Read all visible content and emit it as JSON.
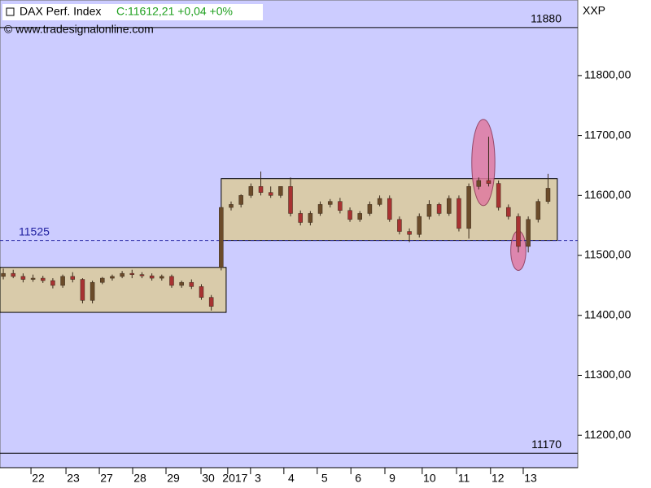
{
  "chart_data": {
    "type": "candlestick",
    "title": "DAX Perf. Index",
    "quote": "C:11612,21 +0,04 +0%",
    "copyright": "© www.tradesignalonline.com",
    "symbol_label": "XXP",
    "up_color": "#6b4b2a",
    "down_color": "#a83232",
    "background": "#ccccff",
    "xlim": [
      0,
      175
    ],
    "ylim": [
      11146,
      11926
    ],
    "yticks": [
      {
        "value": 11200,
        "label": "11200,00"
      },
      {
        "value": 11300,
        "label": "11300,00"
      },
      {
        "value": 11400,
        "label": "11400,00"
      },
      {
        "value": 11500,
        "label": "11500,00"
      },
      {
        "value": 11600,
        "label": "11600,00"
      },
      {
        "value": 11700,
        "label": "11700,00"
      },
      {
        "value": 11800,
        "label": "11800,00"
      }
    ],
    "xticks": [
      {
        "value": 11.6,
        "label": "22"
      },
      {
        "value": 22.2,
        "label": "23"
      },
      {
        "value": 32.3,
        "label": "27"
      },
      {
        "value": 42.4,
        "label": "28"
      },
      {
        "value": 52.5,
        "label": "29"
      },
      {
        "value": 63.1,
        "label": "30"
      },
      {
        "value": 71.2,
        "label": "2017"
      },
      {
        "value": 78.1,
        "label": "3"
      },
      {
        "value": 88.2,
        "label": "4"
      },
      {
        "value": 98.3,
        "label": "5"
      },
      {
        "value": 108.5,
        "label": "6"
      },
      {
        "value": 118.8,
        "label": "9"
      },
      {
        "value": 130.1,
        "label": "10"
      },
      {
        "value": 140.5,
        "label": "11"
      },
      {
        "value": 150.8,
        "label": "12"
      },
      {
        "value": 160.7,
        "label": "13"
      }
    ],
    "levels": [
      {
        "value": 11880,
        "style": "solid"
      },
      {
        "value": 11170,
        "style": "solid"
      },
      {
        "value": 11525,
        "style": "dashed"
      }
    ],
    "boxes": [
      {
        "x0": 0,
        "x1": 68.5,
        "y0": 11405,
        "y1": 11480
      },
      {
        "x0": 67,
        "x1": 168.8,
        "y0": 11525,
        "y1": 11628
      }
    ],
    "ellipses": [
      {
        "x": 146.4,
        "y": 11655,
        "rx": 3.5,
        "ry": 72
      },
      {
        "x": 157,
        "y": 11508,
        "ry": 33,
        "rx": 2.3
      }
    ],
    "x": [
      1,
      4,
      7,
      10,
      13,
      16,
      19,
      22,
      25,
      28,
      31,
      34,
      37,
      40,
      43,
      46,
      49,
      52,
      55,
      58,
      61,
      64,
      67,
      70,
      73,
      76,
      79,
      82,
      85,
      88,
      91,
      94,
      97,
      100,
      103,
      106,
      109,
      112,
      115,
      118,
      121,
      124,
      127,
      130,
      133,
      136,
      139,
      142,
      145,
      148,
      151,
      154,
      157,
      160,
      163,
      166
    ],
    "open": [
      11465,
      11470,
      11465,
      11460,
      11462,
      11458,
      11450,
      11465,
      11460,
      11425,
      11455,
      11462,
      11465,
      11470,
      11468,
      11466,
      11462,
      11465,
      11450,
      11455,
      11448,
      11430,
      11480,
      11580,
      11585,
      11600,
      11615,
      11605,
      11600,
      11615,
      11570,
      11555,
      11570,
      11585,
      11590,
      11575,
      11560,
      11570,
      11585,
      11595,
      11560,
      11540,
      11535,
      11565,
      11585,
      11570,
      11595,
      11545,
      11615,
      11625,
      11620,
      11580,
      11565,
      11515,
      11560,
      11590
    ],
    "high": [
      11478,
      11476,
      11470,
      11468,
      11466,
      11462,
      11468,
      11472,
      11462,
      11458,
      11464,
      11468,
      11474,
      11476,
      11472,
      11470,
      11468,
      11468,
      11458,
      11460,
      11452,
      11434,
      11582,
      11590,
      11602,
      11620,
      11640,
      11615,
      11612,
      11630,
      11575,
      11574,
      11590,
      11594,
      11596,
      11580,
      11574,
      11590,
      11600,
      11600,
      11565,
      11545,
      11570,
      11592,
      11588,
      11600,
      11600,
      11620,
      11630,
      11698,
      11625,
      11585,
      11570,
      11565,
      11594,
      11636
    ],
    "low": [
      11460,
      11462,
      11455,
      11456,
      11454,
      11445,
      11446,
      11455,
      11420,
      11420,
      11452,
      11458,
      11462,
      11462,
      11462,
      11458,
      11458,
      11446,
      11446,
      11444,
      11426,
      11408,
      11475,
      11575,
      11580,
      11596,
      11600,
      11596,
      11596,
      11565,
      11550,
      11550,
      11566,
      11580,
      11570,
      11556,
      11556,
      11566,
      11582,
      11556,
      11535,
      11522,
      11530,
      11560,
      11566,
      11566,
      11540,
      11528,
      11610,
      11615,
      11575,
      11560,
      11505,
      11505,
      11555,
      11586
    ],
    "close": [
      11470,
      11465,
      11460,
      11462,
      11458,
      11450,
      11465,
      11460,
      11425,
      11455,
      11462,
      11465,
      11470,
      11468,
      11466,
      11462,
      11465,
      11450,
      11455,
      11448,
      11430,
      11415,
      11580,
      11585,
      11600,
      11615,
      11605,
      11600,
      11615,
      11570,
      11555,
      11570,
      11585,
      11590,
      11575,
      11560,
      11570,
      11585,
      11595,
      11560,
      11540,
      11535,
      11565,
      11585,
      11570,
      11595,
      11545,
      11615,
      11625,
      11620,
      11580,
      11565,
      11515,
      11560,
      11590,
      11612
    ]
  }
}
